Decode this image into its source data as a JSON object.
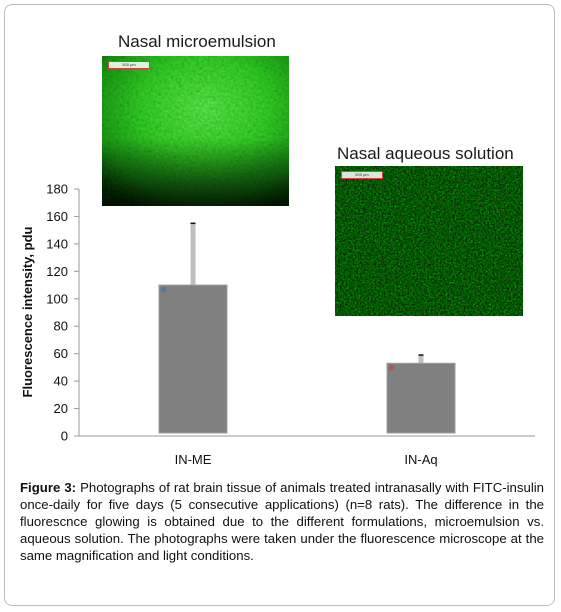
{
  "chart_data": {
    "type": "bar",
    "ylabel": "Fluorescence intensity, pdu",
    "ylim": [
      0,
      180
    ],
    "yticks": [
      0,
      20,
      40,
      60,
      80,
      100,
      120,
      140,
      160,
      180
    ],
    "categories": [
      "IN-ME",
      "IN-Aq"
    ],
    "values": [
      110,
      53
    ],
    "error_upper": [
      155,
      59
    ],
    "bar_color": "#808080",
    "error_color": "#bfbfbf",
    "marker_colors": [
      "#4a7bb5",
      "#c0504d"
    ],
    "grid": false
  },
  "photos": [
    {
      "label": "Nasal microemulsion",
      "scale_text": "500 µm"
    },
    {
      "label": "Nasal aqueous solution",
      "scale_text": "500 µm"
    }
  ],
  "caption": {
    "prefix": "Figure 3:",
    "text": " Photographs of rat brain tissue of animals treated intranasally with FITC-insulin once-daily for five days (5 consecutive applications) (n=8 rats). The difference in the fluorescnce glowing is obtained due to the different formulations, microemulsion vs. aqueous solution. The photographs were taken under the fluorescence microscope at the same magnification and light conditions."
  }
}
